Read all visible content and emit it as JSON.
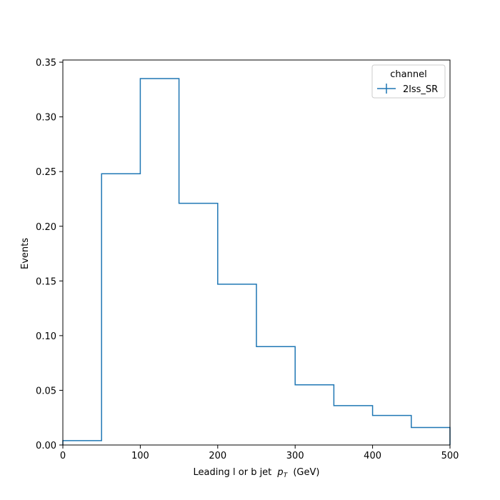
{
  "chart_data": {
    "type": "histogram-step",
    "title": "",
    "xlabel": "Leading l or b jet",
    "xlabel_math": "p",
    "xlabel_math_sub": "T",
    "xlabel_unit": "(GeV)",
    "ylabel": "Events",
    "xlim": [
      0,
      500
    ],
    "ylim": [
      0,
      0.352
    ],
    "x_ticks": [
      0,
      100,
      200,
      300,
      400,
      500
    ],
    "x_tick_labels": [
      "0",
      "100",
      "200",
      "300",
      "400",
      "500"
    ],
    "y_ticks": [
      0,
      0.05,
      0.1,
      0.15,
      0.2,
      0.25,
      0.3,
      0.35
    ],
    "y_tick_labels": [
      "0.00",
      "0.05",
      "0.10",
      "0.15",
      "0.20",
      "0.25",
      "0.30",
      "0.35"
    ],
    "grid": false,
    "legend": {
      "title": "channel",
      "placement": "top-right",
      "entries": [
        "2lss_SR"
      ]
    },
    "bin_edges": [
      0,
      50,
      100,
      150,
      200,
      250,
      300,
      350,
      400,
      450,
      500
    ],
    "series": [
      {
        "name": "2lss_SR",
        "color": "#1f77b4",
        "values": [
          0.004,
          0.248,
          0.335,
          0.221,
          0.147,
          0.09,
          0.055,
          0.036,
          0.027,
          0.016
        ]
      }
    ]
  }
}
